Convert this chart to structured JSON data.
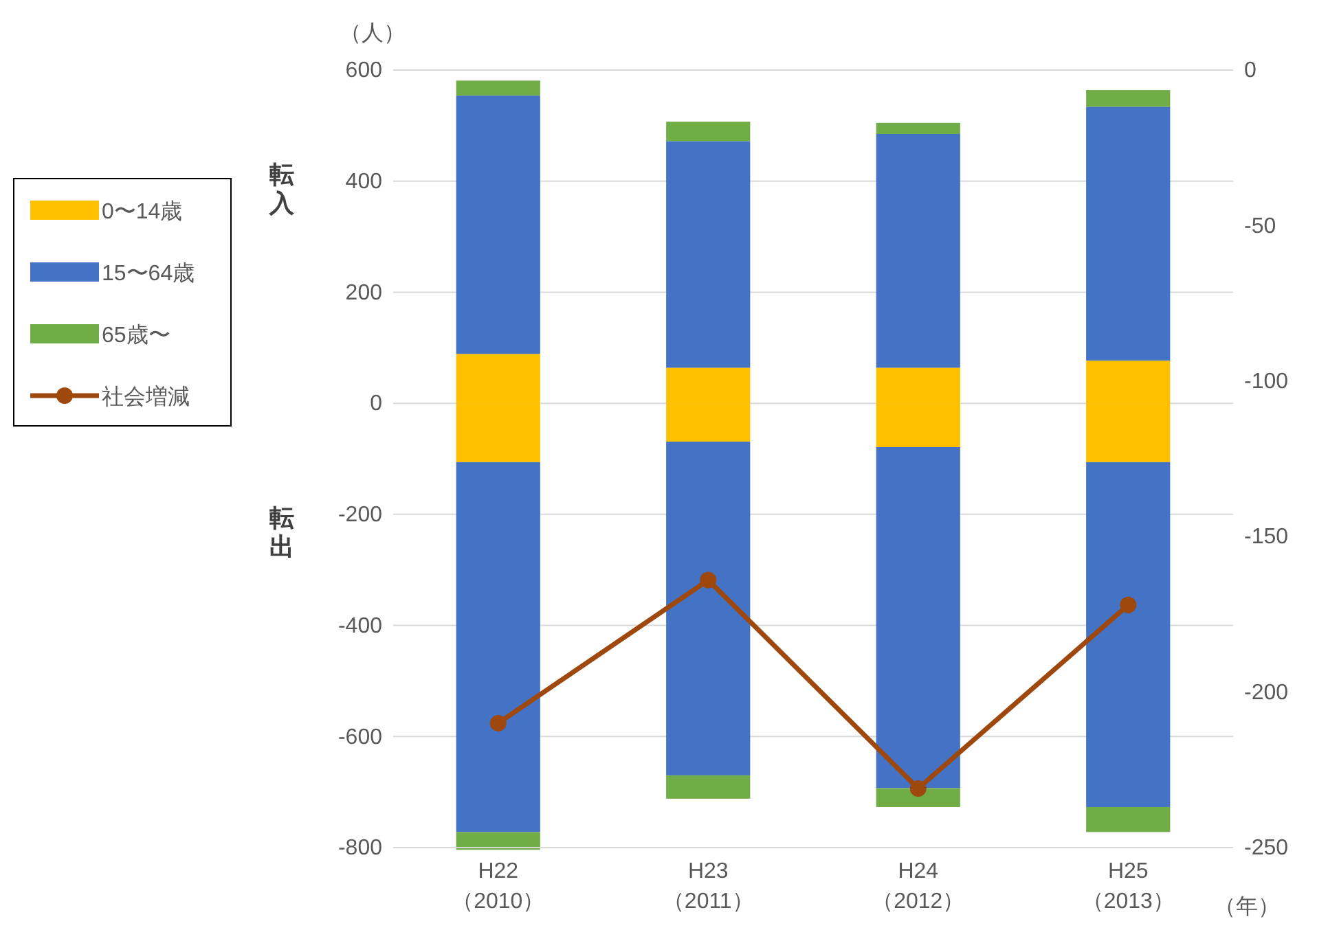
{
  "chart_data": {
    "type": "bar",
    "stacked": true,
    "ylabel": "（人）",
    "xlabel": "（年）",
    "categories": [
      "H22\n（2010）",
      "H23\n（2011）",
      "H24\n（2012）",
      "H25\n（2013）"
    ],
    "series": [
      {
        "name": "0〜14歳",
        "color": "#ffc000",
        "values": [
          89,
          64,
          64,
          77
        ]
      },
      {
        "name": "15〜64歳",
        "color": "#4472c4",
        "values": [
          465,
          408,
          421,
          457
        ]
      },
      {
        "name": "65歳〜",
        "color": "#70ad47",
        "values": [
          27,
          35,
          20,
          30
        ]
      },
      {
        "color": "#ffc000",
        "values": [
          -106,
          -69,
          -79,
          -106
        ]
      },
      {
        "color": "#4472c4",
        "values": [
          -666,
          -601,
          -614,
          -621
        ]
      },
      {
        "color": "#70ad47",
        "values": [
          -32,
          -42,
          -34,
          -45
        ]
      },
      {
        "name": "社会増減",
        "type": "line",
        "axis": "y2",
        "color": "#9e480e",
        "values": [
          -210,
          -164,
          -231,
          -172
        ]
      }
    ],
    "ylim": [
      -800,
      600
    ],
    "yticks": [
      -800,
      -600,
      -400,
      -200,
      0,
      200,
      400,
      600
    ],
    "y2lim": [
      -250,
      0
    ],
    "y2ticks": [
      -250,
      -200,
      -150,
      -100,
      -50,
      0
    ],
    "annotations": [
      "転入",
      "転出"
    ],
    "grid": "y",
    "legend": "left",
    "marker": "circle"
  }
}
